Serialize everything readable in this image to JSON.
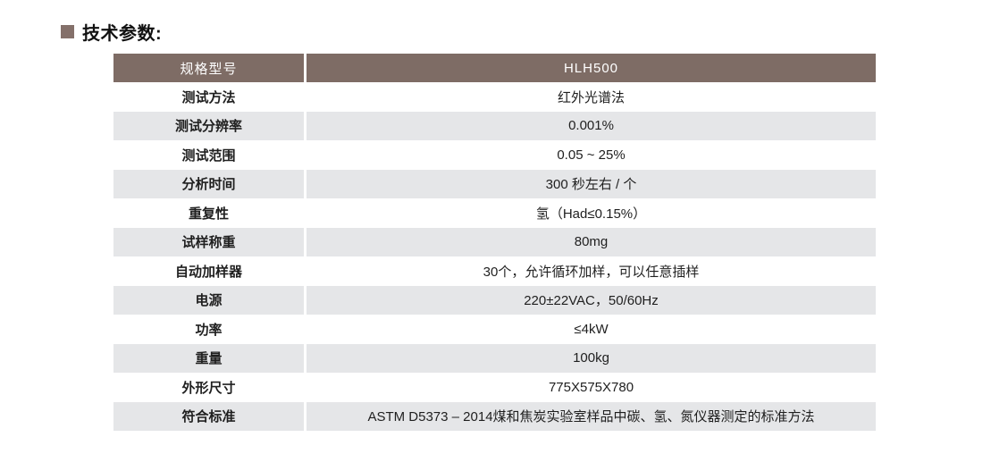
{
  "page": {
    "title": "技术参数:",
    "accent_color": "#84706a",
    "header_color": "#7e6c65",
    "alt_row_color": "#e5e6e8"
  },
  "table": {
    "header": {
      "label": "规格型号",
      "value": "HLH500"
    },
    "rows": [
      {
        "label": "测试方法",
        "value": "红外光谱法"
      },
      {
        "label": "测试分辨率",
        "value": "0.001%"
      },
      {
        "label": "测试范围",
        "value": "0.05 ~ 25%"
      },
      {
        "label": "分析时间",
        "value": "300 秒左右 / 个"
      },
      {
        "label": "重复性",
        "value": "氢（Had≤0.15%）"
      },
      {
        "label": "试样称重",
        "value": "80mg"
      },
      {
        "label": "自动加样器",
        "value": "30个，允许循环加样，可以任意插样"
      },
      {
        "label": "电源",
        "value": "220±22VAC，50/60Hz"
      },
      {
        "label": "功率",
        "value": "≤4kW"
      },
      {
        "label": "重量",
        "value": "100kg"
      },
      {
        "label": "外形尺寸",
        "value": "775X575X780"
      },
      {
        "label": "符合标准",
        "value": "ASTM D5373 – 2014煤和焦炭实验室样品中碳、氢、氮仪器测定的标准方法"
      }
    ]
  }
}
